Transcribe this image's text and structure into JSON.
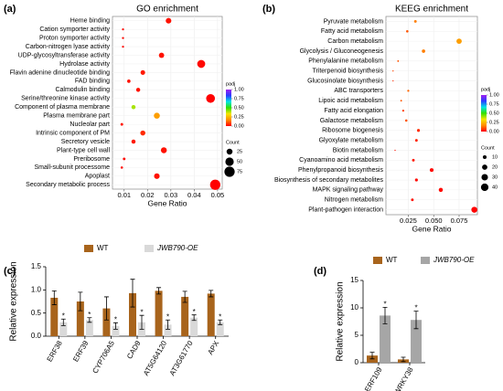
{
  "chart_data": [
    {
      "type": "scatter",
      "panel_label": "(a)",
      "title": "GO enrichment",
      "xlabel": "Gene Ratio",
      "categories": [
        "Heme binding",
        "Cation symporter activity",
        "Proton symporter activity",
        "Carbon-nitrogen lyase activity",
        "UDP-glycosyltransferase activity",
        "Hydrolase activity",
        "Flavin adenine dinucleotide binding",
        "FAD binding",
        "Calmodulin binding",
        "Serine/threonine kinase activity",
        "Component of plasma membrane",
        "Plasma membrane part",
        "Nucleolar part",
        "Intrinsic component of PM",
        "Secretory vesicle",
        "Plant-type cell wall",
        "Preribosome",
        "Small-subunit processome",
        "Apoplast",
        "Secondary metabolic process"
      ],
      "values": [
        0.029,
        0.0095,
        0.0095,
        0.0095,
        0.026,
        0.043,
        0.018,
        0.012,
        0.016,
        0.047,
        0.014,
        0.024,
        0.009,
        0.018,
        0.014,
        0.027,
        0.01,
        0.009,
        0.024,
        0.049
      ],
      "padj": [
        0.02,
        0.01,
        0.01,
        0.01,
        0.02,
        0.01,
        0.03,
        0.02,
        0.02,
        0.0,
        0.4,
        0.2,
        0.02,
        0.05,
        0.03,
        0.02,
        0.01,
        0.01,
        0.02,
        0.0
      ],
      "count": [
        22,
        3,
        3,
        3,
        20,
        45,
        15,
        8,
        12,
        55,
        12,
        25,
        5,
        18,
        12,
        25,
        5,
        4,
        22,
        75
      ],
      "xlim": [
        0.005,
        0.052
      ],
      "xticks": [
        0.01,
        0.02,
        0.03,
        0.04,
        0.05
      ],
      "grid": true,
      "colormap": [
        "#ff0000",
        "#ff8c00",
        "#f5e600",
        "#33e000",
        "#00e5e5",
        "#2a3cff",
        "#a020f0"
      ],
      "color_legend": {
        "title": "padj",
        "ticks": [
          {
            "value": 0,
            "label": "0.00"
          },
          0.25,
          {
            "value": 0.5,
            "label": "0.50"
          },
          0.75,
          {
            "value": 1,
            "label": "1.00"
          }
        ]
      },
      "size_legend": {
        "title": "Count",
        "values": [
          25,
          50,
          75
        ]
      }
    },
    {
      "type": "scatter",
      "panel_label": "(b)",
      "title": "KEEG enrichment",
      "xlabel": "Gene Ratio",
      "categories": [
        "Pyruvate metabolism",
        "Fatty acid metabolism",
        "Carbon metabolism",
        "Glycolysis / Gluconeogenesis",
        "Phenylalanine metabolism",
        "Triterpenoid biosynthesis",
        "Glucosinolate biosynthesis",
        "ABC transporters",
        "Lipoic acid metabolism",
        "Fatty acid elongation",
        "Galactose metabolism",
        "Ribosome biogenesis",
        "Glyoxylate metabolism",
        "Biotin metabolism",
        "Cyanoamino acid metabolism",
        "Phenylpropanoid biosynthesis",
        "Biosynthesis of secondary metabolites",
        "MAPK signaling pathway",
        "Nitrogen metabolism",
        "Plant-pathogen interaction"
      ],
      "values": [
        0.032,
        0.024,
        0.075,
        0.04,
        0.015,
        0.01,
        0.01,
        0.025,
        0.018,
        0.02,
        0.023,
        0.035,
        0.033,
        0.012,
        0.03,
        0.048,
        0.033,
        0.057,
        0.029,
        0.09
      ],
      "padj": [
        0.15,
        0.1,
        0.2,
        0.15,
        0.1,
        0.08,
        0.05,
        0.12,
        0.1,
        0.08,
        0.1,
        0.05,
        0.04,
        0.02,
        0.03,
        0.01,
        0.01,
        0.01,
        0.02,
        0.0
      ],
      "count": [
        5,
        4,
        20,
        8,
        2,
        1,
        1,
        3,
        2,
        3,
        4,
        6,
        5,
        1,
        5,
        10,
        6,
        12,
        5,
        25
      ],
      "xlim": [
        0.003,
        0.093
      ],
      "xticks": [
        0.025,
        {
          "value": 0.05,
          "label": "0.050"
        },
        0.075
      ],
      "grid": true,
      "colormap": [
        "#ff0000",
        "#ff8c00",
        "#f5e600",
        "#33e000",
        "#00e5e5",
        "#2a3cff",
        "#a020f0"
      ],
      "color_legend": {
        "title": "padj",
        "ticks": [
          {
            "value": 0,
            "label": "0.00"
          },
          0.25,
          {
            "value": 0.5,
            "label": "0.50"
          },
          0.75,
          {
            "value": 1,
            "label": "1.00"
          }
        ]
      },
      "size_legend": {
        "title": "Count",
        "values": [
          10,
          20,
          30,
          40
        ]
      }
    },
    {
      "type": "bar",
      "panel_label": "(c)",
      "ylabel": "Relative expression",
      "categories": [
        "ERF38",
        "ERF39",
        "CYP706A5",
        "CAD9",
        "AT5G64120",
        "AT3G61770",
        "APX"
      ],
      "series": [
        {
          "name": "WT",
          "color": "#a8641c",
          "values": [
            0.83,
            0.75,
            0.6,
            0.93,
            0.98,
            0.85,
            0.92
          ],
          "errors": [
            0.15,
            0.2,
            0.25,
            0.3,
            0.07,
            0.12,
            0.07
          ]
        },
        {
          "name": "JWB790-OE",
          "color": "#d9d9d9",
          "values": [
            0.3,
            0.35,
            0.22,
            0.3,
            0.25,
            0.4,
            0.3
          ],
          "errors": [
            0.07,
            0.05,
            0.07,
            0.15,
            0.1,
            0.06,
            0.05
          ],
          "annotations": [
            "*",
            "*",
            "*",
            "*",
            "*",
            "*",
            "*"
          ]
        }
      ],
      "ylim": [
        0,
        1.5
      ],
      "yticks": [
        {
          "value": 0,
          "label": "0.0"
        },
        0.5,
        {
          "value": 1,
          "label": "1.0"
        },
        1.5
      ]
    },
    {
      "type": "bar",
      "panel_label": "(d)",
      "ylabel": "Relative expression",
      "categories": [
        "ERF109",
        "WRKY38"
      ],
      "series": [
        {
          "name": "WT",
          "color": "#a8641c",
          "values": [
            1.3,
            0.6
          ],
          "errors": [
            0.6,
            0.4
          ]
        },
        {
          "name": "JWB790-OE",
          "color": "#a6a6a6",
          "values": [
            8.6,
            7.8
          ],
          "errors": [
            1.5,
            1.6
          ],
          "annotations": [
            "*",
            "*"
          ]
        }
      ],
      "ylim": [
        0,
        15
      ],
      "yticks": [
        0,
        5,
        10,
        15
      ]
    }
  ]
}
